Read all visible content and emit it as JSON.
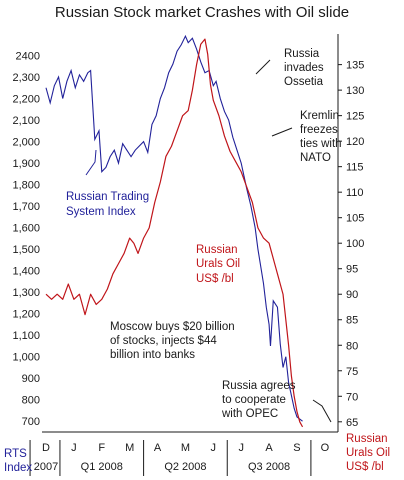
{
  "chart_data": {
    "type": "line",
    "title": "Russian Stock market Crashes with Oil slide",
    "left_axis": {
      "label": "RTS Index",
      "ylim": [
        650,
        2500
      ],
      "ticks": [
        2400,
        2300,
        2200,
        2100,
        2000,
        1900,
        1800,
        1700,
        1600,
        1500,
        1400,
        1300,
        1200,
        1100,
        1000,
        900,
        800,
        700
      ],
      "tick_labels": [
        "2400",
        "2,300",
        "2,200",
        "2,100",
        "2,000",
        "1,900",
        "1,800",
        "1,700",
        "1,600",
        "1,500",
        "1,400",
        "1,300",
        "1,200",
        "1,100",
        "1,000",
        "900",
        "800",
        "700"
      ]
    },
    "right_axis": {
      "label": "Russian Urals Oil US$ /bl",
      "ylim": [
        63,
        141
      ],
      "ticks": [
        135,
        130,
        125,
        120,
        115,
        110,
        105,
        100,
        95,
        90,
        85,
        80,
        75,
        70,
        65
      ],
      "tick_labels": [
        "135",
        "130",
        "125",
        "120",
        "115",
        "110",
        "105",
        "100",
        "95",
        "90",
        "85",
        "80",
        "75",
        "70",
        "65"
      ]
    },
    "x_axis": {
      "months": [
        "D",
        "J",
        "F",
        "M",
        "A",
        "M",
        "J",
        "J",
        "A",
        "S",
        "O"
      ],
      "groups": [
        "2007",
        "Q1 2008",
        "Q2 2008",
        "Q3 2008"
      ]
    },
    "colors": {
      "rts": "#22229a",
      "oil": "#c0151a"
    },
    "series": [
      {
        "name": "Russian Trading System Index",
        "axis": "left",
        "points": [
          [
            0.0,
            2250
          ],
          [
            0.15,
            2180
          ],
          [
            0.3,
            2260
          ],
          [
            0.45,
            2300
          ],
          [
            0.6,
            2200
          ],
          [
            0.75,
            2280
          ],
          [
            0.9,
            2330
          ],
          [
            1.05,
            2250
          ],
          [
            1.2,
            2310
          ],
          [
            1.35,
            2280
          ],
          [
            1.5,
            2320
          ],
          [
            1.6,
            2330
          ],
          [
            1.75,
            2010
          ],
          [
            1.9,
            2050
          ],
          [
            2.0,
            1860
          ],
          [
            2.15,
            1880
          ],
          [
            2.3,
            1930
          ],
          [
            2.45,
            1960
          ],
          [
            2.6,
            1900
          ],
          [
            2.75,
            1990
          ],
          [
            2.9,
            1960
          ],
          [
            3.05,
            1930
          ],
          [
            3.2,
            1960
          ],
          [
            3.35,
            1980
          ],
          [
            3.5,
            2000
          ],
          [
            3.65,
            1950
          ],
          [
            3.8,
            2080
          ],
          [
            3.95,
            2120
          ],
          [
            4.1,
            2200
          ],
          [
            4.25,
            2250
          ],
          [
            4.4,
            2320
          ],
          [
            4.55,
            2360
          ],
          [
            4.7,
            2420
          ],
          [
            4.85,
            2450
          ],
          [
            5.0,
            2490
          ],
          [
            5.1,
            2460
          ],
          [
            5.25,
            2480
          ],
          [
            5.4,
            2430
          ],
          [
            5.55,
            2370
          ],
          [
            5.7,
            2320
          ],
          [
            5.85,
            2330
          ],
          [
            6.0,
            2260
          ],
          [
            6.1,
            2280
          ],
          [
            6.25,
            2200
          ],
          [
            6.4,
            2140
          ],
          [
            6.55,
            2100
          ],
          [
            6.7,
            2020
          ],
          [
            6.85,
            1960
          ],
          [
            7.0,
            1900
          ],
          [
            7.1,
            1840
          ],
          [
            7.2,
            1780
          ],
          [
            7.35,
            1700
          ],
          [
            7.5,
            1600
          ],
          [
            7.6,
            1500
          ],
          [
            7.7,
            1420
          ],
          [
            7.8,
            1340
          ],
          [
            7.9,
            1230
          ],
          [
            8.0,
            1150
          ],
          [
            8.05,
            1050
          ],
          [
            8.15,
            1260
          ],
          [
            8.3,
            1230
          ],
          [
            8.4,
            1060
          ],
          [
            8.5,
            950
          ],
          [
            8.6,
            1000
          ],
          [
            8.7,
            880
          ],
          [
            8.8,
            820
          ],
          [
            8.9,
            760
          ],
          [
            9.0,
            720
          ],
          [
            9.1,
            710
          ],
          [
            9.2,
            700
          ]
        ]
      },
      {
        "name": "Russian Urals Oil US$ /bl",
        "axis": "right",
        "points": [
          [
            0.0,
            90
          ],
          [
            0.2,
            89
          ],
          [
            0.4,
            90
          ],
          [
            0.6,
            89
          ],
          [
            0.8,
            92
          ],
          [
            1.0,
            89
          ],
          [
            1.2,
            90
          ],
          [
            1.4,
            86
          ],
          [
            1.6,
            90
          ],
          [
            1.8,
            88
          ],
          [
            2.0,
            89
          ],
          [
            2.2,
            91
          ],
          [
            2.4,
            94
          ],
          [
            2.6,
            96
          ],
          [
            2.8,
            98
          ],
          [
            3.0,
            101
          ],
          [
            3.15,
            100
          ],
          [
            3.3,
            98
          ],
          [
            3.5,
            101
          ],
          [
            3.7,
            103
          ],
          [
            3.9,
            108
          ],
          [
            4.1,
            112
          ],
          [
            4.3,
            117
          ],
          [
            4.5,
            119
          ],
          [
            4.7,
            122
          ],
          [
            4.9,
            125
          ],
          [
            5.1,
            126
          ],
          [
            5.25,
            130
          ],
          [
            5.4,
            135
          ],
          [
            5.55,
            139
          ],
          [
            5.7,
            140
          ],
          [
            5.8,
            137
          ],
          [
            5.9,
            131
          ],
          [
            6.0,
            128
          ],
          [
            6.2,
            125
          ],
          [
            6.4,
            121
          ],
          [
            6.6,
            118
          ],
          [
            6.8,
            116
          ],
          [
            7.0,
            114
          ],
          [
            7.2,
            111
          ],
          [
            7.4,
            108
          ],
          [
            7.6,
            103
          ],
          [
            7.8,
            101
          ],
          [
            8.0,
            100
          ],
          [
            8.1,
            98
          ],
          [
            8.2,
            96
          ],
          [
            8.3,
            94
          ],
          [
            8.4,
            92
          ],
          [
            8.5,
            90
          ],
          [
            8.6,
            85
          ],
          [
            8.7,
            80
          ],
          [
            8.8,
            74
          ],
          [
            8.9,
            70
          ],
          [
            9.0,
            67
          ],
          [
            9.1,
            65
          ],
          [
            9.2,
            64
          ]
        ]
      }
    ]
  },
  "annotations": {
    "russia_invades": [
      "Russia",
      "invades",
      "Ossetia"
    ],
    "kremlin": [
      "Kremlin",
      "freezes",
      "ties with",
      "NATO"
    ],
    "rts_name": [
      "Russian Trading",
      "System Index"
    ],
    "oil_name": [
      "Russian",
      "Urals Oil",
      "US$ /bl"
    ],
    "moscow": [
      "Moscow buys $20 billion",
      "of stocks, injects $44",
      "billion into banks"
    ],
    "opec": [
      "Russia agrees",
      "to cooperate",
      "with OPEC"
    ]
  },
  "axis_names": {
    "left": [
      "RTS",
      "Index"
    ],
    "right": [
      "Russian",
      "Urals Oil",
      "US$ /bl"
    ]
  }
}
